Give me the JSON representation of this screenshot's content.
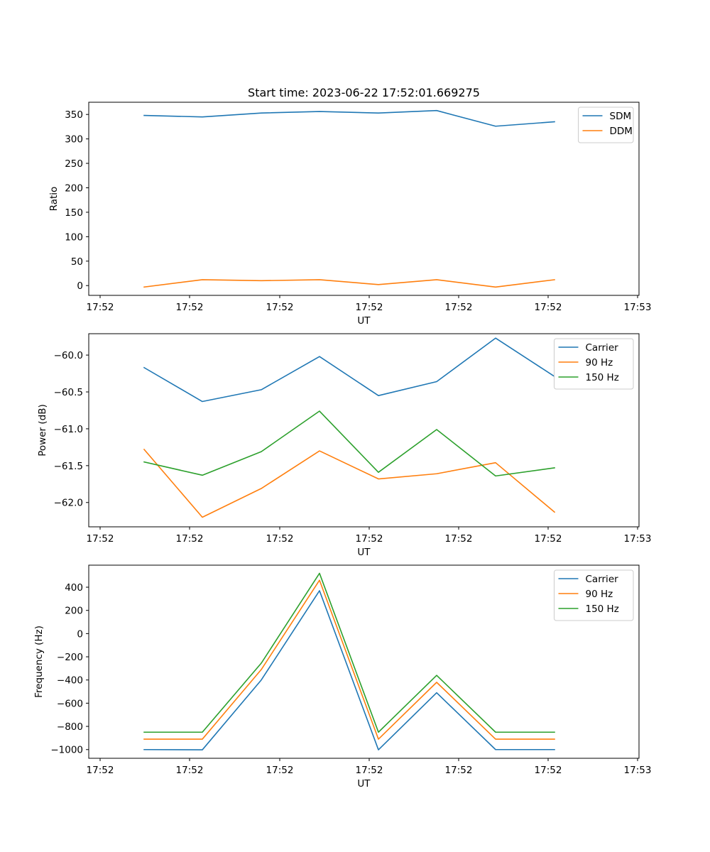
{
  "figure": {
    "title": "Start time: 2023-06-22 17:52:01.669275"
  },
  "chart_data": [
    {
      "type": "line",
      "title": "Start time: 2023-06-22 17:52:01.669275",
      "xlabel": "UT",
      "ylabel": "Ratio",
      "x_tick_labels": [
        "17:52",
        "17:52",
        "17:52",
        "17:52",
        "17:52",
        "17:52",
        "17:53"
      ],
      "ylim": [
        -20,
        375
      ],
      "y_ticks": [
        0,
        50,
        100,
        150,
        200,
        250,
        300,
        350
      ],
      "legend": "top-right",
      "grid": false,
      "series": [
        {
          "name": "SDM",
          "color": "#1f77b4",
          "values": [
            348,
            345,
            353,
            356,
            353,
            358,
            326,
            335
          ]
        },
        {
          "name": "DDM",
          "color": "#ff7f0e",
          "values": [
            -3,
            12,
            10,
            12,
            2,
            12,
            -3,
            12
          ]
        }
      ]
    },
    {
      "type": "line",
      "xlabel": "UT",
      "ylabel": "Power (dB)",
      "x_tick_labels": [
        "17:52",
        "17:52",
        "17:52",
        "17:52",
        "17:52",
        "17:52",
        "17:53"
      ],
      "ylim": [
        -62.33,
        -59.71
      ],
      "y_ticks": [
        -62.0,
        -61.5,
        -61.0,
        -60.5,
        -60.0
      ],
      "y_tick_labels": [
        "−62.0",
        "−61.5",
        "−61.0",
        "−60.5",
        "−60.0"
      ],
      "legend": "top-right",
      "grid": false,
      "series": [
        {
          "name": "Carrier",
          "color": "#1f77b4",
          "values": [
            -60.17,
            -60.63,
            -60.47,
            -60.02,
            -60.55,
            -60.36,
            -59.77,
            -60.29
          ]
        },
        {
          "name": "90 Hz",
          "color": "#ff7f0e",
          "values": [
            -61.28,
            -62.2,
            -61.81,
            -61.3,
            -61.68,
            -61.61,
            -61.46,
            -62.13
          ]
        },
        {
          "name": "150 Hz",
          "color": "#2ca02c",
          "values": [
            -61.45,
            -61.63,
            -61.31,
            -60.76,
            -61.59,
            -61.01,
            -61.64,
            -61.53
          ]
        }
      ]
    },
    {
      "type": "line",
      "xlabel": "UT",
      "ylabel": "Frequency (Hz)",
      "x_tick_labels": [
        "17:52",
        "17:52",
        "17:52",
        "17:52",
        "17:52",
        "17:52",
        "17:53"
      ],
      "ylim": [
        -1075,
        590
      ],
      "y_ticks": [
        -1000,
        -800,
        -600,
        -400,
        -200,
        0,
        200,
        400
      ],
      "y_tick_labels": [
        "−1000",
        "−800",
        "−600",
        "−400",
        "−200",
        "0",
        "200",
        "400"
      ],
      "legend": "top-right",
      "grid": false,
      "series": [
        {
          "name": "Carrier",
          "color": "#1f77b4",
          "values": [
            -1000,
            -1002,
            -400,
            370,
            -1002,
            -510,
            -1000,
            -1000
          ]
        },
        {
          "name": "90 Hz",
          "color": "#ff7f0e",
          "values": [
            -910,
            -910,
            -310,
            460,
            -910,
            -420,
            -910,
            -910
          ]
        },
        {
          "name": "150 Hz",
          "color": "#2ca02c",
          "values": [
            -850,
            -850,
            -255,
            520,
            -850,
            -360,
            -850,
            -850
          ]
        }
      ]
    }
  ]
}
